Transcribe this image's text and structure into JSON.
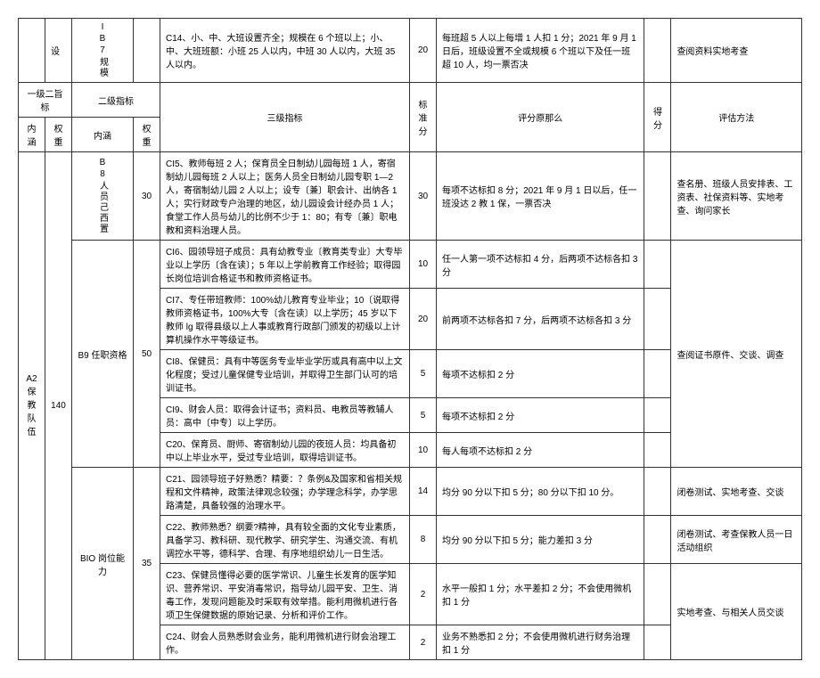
{
  "topRow": {
    "col1": "设",
    "col2": "IB7规模",
    "c14": "C14、小、中、大班设置齐全；规模在 6 个班以上；小、中、大班班额：小班 25 人以内，中班 30 人以内，大班 35 人以内。",
    "score": "20",
    "rule": "每班超 5 人以上每增 1 人扣 1 分；2021 年 9 月 1 日后，班级设置不全或规模 6 个班以下及任一班超 10 人，均一票否决",
    "method": "查阅资料实地考查"
  },
  "headers": {
    "h1": "一级二旨标",
    "h1b": "二级指标",
    "h2a": "内涵",
    "h2b": "权重",
    "h2c": "内涵",
    "h2d": "权重",
    "h3": "三级指标",
    "h4": "标准分",
    "h5": "评分原那么",
    "h6": "得分",
    "h7": "评估方法"
  },
  "section": {
    "lvl1_name": "A2 保教队伍",
    "lvl1_weight": "140",
    "b8_name": "B8人员己西置",
    "b8_weight": "30",
    "b9_name": "B9 任职资格",
    "b9_weight": "50",
    "b10_name": "BIO 岗位能力",
    "b10_weight": "35"
  },
  "rows": [
    {
      "text": "CI5、教师每班 2 人；保育员全日制幼儿园每班 1 人，寄宿制幼儿园每班 2 人以上；医务人员全日制幼儿园专职 1—2 人，寄宿制幼儿园 2 人以上；设专〔兼〕职会计、出纳各 1 人；实行财政专户治理的地区，幼儿园设会计经办员 1 人；食堂工作人员与幼儿的比例不少于 1：80；有专〔兼〕职电教和资料治理人员。",
      "score": "30",
      "rule": "每项不达标扣 8 分；2021 年 9 月 1 日以后，任一班没达 2 教 1 保，一票否决",
      "method": "查名册、班级人员安排表、工资表、社保资料等、实地考查、询问家长"
    },
    {
      "text": "CI6、园领导班子成员：具有幼教专业〔教育类专业〕大专毕业以上学历〔含在读〕；5 年以上学前教育工作经验；取得园长岗位培训合格证书和教师资格证书。",
      "score": "10",
      "rule": "任一人第一项不达标扣 4 分，后两项不达标各扣 3 分",
      "method": ""
    },
    {
      "text": "CI7、专任带班教师：100%幼儿教育专业毕业；10〔说取得教师资格证书，100%大专〔含在读〕以上学历；45 岁以下教师 lg 取得县级以上人事或教育行政部门颁发的初级以上计算机操作水平等级证书。",
      "score": "20",
      "rule": "前两项不达标各扣 7 分，后两项不达标各扣 3 分",
      "method": "查阅证书原件、交谈、调查"
    },
    {
      "text": "CI8、保健员：具有中等医务专业毕业学历或具有高中以上文化程度；受过儿童保健专业培训，并取得卫生部门认可的培训证书。",
      "score": "5",
      "rule": "每项不达标扣 2 分",
      "method": ""
    },
    {
      "text": "CI9、财会人员：取得会计证书；资料员、电教员等教辅人员：高中〔中专〕以上学历。",
      "score": "5",
      "rule": "每项不达标扣 2 分",
      "method": ""
    },
    {
      "text": "C20、保育员、厨师、寄宿制幼儿园的夜班人员：均具备初中以上毕业水平，受过专业培训，取得培训证书。",
      "score": "10",
      "rule": "每人每项不达标扣 2 分",
      "method": ""
    },
    {
      "text": "C21、园领导班子好熟悉？精要：？条例&及国家和省相关规程和文件精神，政策法律观念较强；办学理念科学，办学思路清楚，具备较强的治理水平。",
      "score": "14",
      "rule": "均分 90 分以下扣 5 分；80 分以下扣 10 分。",
      "method": "闭卷测试、实地考查、交谈"
    },
    {
      "text": "C22、教师熟悉？纲要?精神，具有较全面的文化专业素质，具备学习、教科研、现代教学、研究学生、沟通交流、有机调控水平等，德科学、合理、有序地组织幼儿一日生活。",
      "score": "8",
      "rule": "均分 90 分以下扣 5 分；能力差扣 3 分",
      "method": "闭卷测试、考查保教人员一日活动组织"
    },
    {
      "text": "C23、保健员懂得必要的医学常识、儿童生长发育的医学知识、营养常识、平安消毒常识，指导幼儿园平安、卫生、消毒工作，发现问题能及时采取有效举措。能利用微机进行各项卫生保健数据的原始记录、分析和评价工作。",
      "score": "2",
      "rule": "水平一般扣 1 分；水平差扣 2 分；不会使用微机扣 1 分",
      "method": "实地考查、与相关人员交谈"
    },
    {
      "text": "C24、财会人员熟悉财会业务，能利用微机进行财会治理工作。",
      "score": "2",
      "rule": "业务不熟悉扣 2 分；不会使用微机进行财务治理扣 1 分",
      "method": ""
    }
  ]
}
